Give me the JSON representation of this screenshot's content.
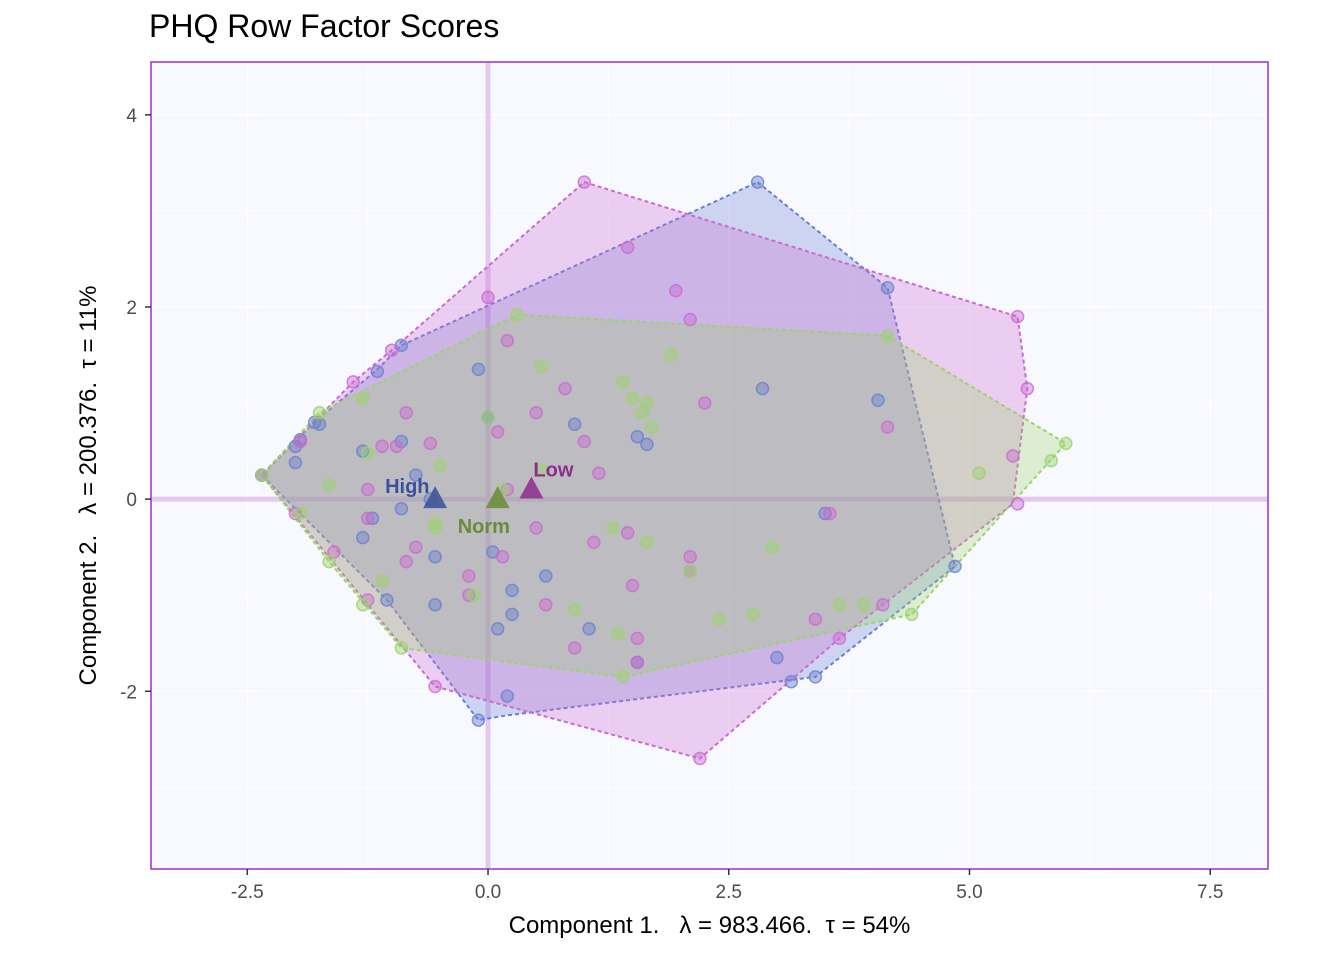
{
  "chart_data": {
    "type": "scatter",
    "title": "PHQ Row Factor Scores",
    "xlabel": "Component 1.   λ = 983.466.  τ = 54%",
    "ylabel": "Component 2.   λ = 200.376.  τ = 11%",
    "xlim": [
      -3.5,
      8.1
    ],
    "ylim": [
      -3.85,
      4.55
    ],
    "xticks": [
      -2.5,
      0.0,
      2.5,
      5.0,
      7.5
    ],
    "xtick_labels": [
      "-2.5",
      "0.0",
      "2.5",
      "5.0",
      "7.5"
    ],
    "yticks": [
      -2,
      0,
      2,
      4
    ],
    "ytick_labels": [
      "-2",
      "0",
      "2",
      "4"
    ],
    "background": "#f8f8ff",
    "panel_border": "#9b30c8",
    "origin_lines_color": "#e3c9f0",
    "grid": true,
    "series": [
      {
        "name": "High",
        "color": "#6b80cf",
        "label_color": "#3b4f9e",
        "mean": [
          -0.55,
          0.0
        ],
        "hull": [
          [
            2.8,
            3.3
          ],
          [
            4.15,
            2.2
          ],
          [
            4.85,
            -0.7
          ],
          [
            3.4,
            -1.85
          ],
          [
            0.2,
            -2.25
          ],
          [
            -0.1,
            -2.3
          ],
          [
            -1.05,
            -1.05
          ],
          [
            -2.35,
            0.25
          ],
          [
            -1.8,
            0.8
          ],
          [
            -1.15,
            1.35
          ],
          [
            -0.9,
            1.6
          ]
        ],
        "points": [
          [
            -2.35,
            0.25
          ],
          [
            -2.0,
            0.55
          ],
          [
            -1.95,
            0.62
          ],
          [
            -1.8,
            0.8
          ],
          [
            -1.75,
            0.78
          ],
          [
            -1.15,
            1.33
          ],
          [
            -0.9,
            1.6
          ],
          [
            -1.3,
            0.5
          ],
          [
            -0.9,
            0.6
          ],
          [
            -0.75,
            0.25
          ],
          [
            -1.2,
            -0.2
          ],
          [
            -1.3,
            -0.4
          ],
          [
            -0.9,
            -0.1
          ],
          [
            -0.55,
            -0.6
          ],
          [
            -0.55,
            -1.1
          ],
          [
            -1.05,
            -1.05
          ],
          [
            -0.1,
            1.35
          ],
          [
            0.0,
            0.85
          ],
          [
            0.05,
            -0.55
          ],
          [
            0.1,
            -1.35
          ],
          [
            0.25,
            -0.95
          ],
          [
            0.25,
            -1.2
          ],
          [
            0.6,
            -0.8
          ],
          [
            0.9,
            0.78
          ],
          [
            1.05,
            -1.35
          ],
          [
            1.55,
            0.65
          ],
          [
            1.65,
            0.57
          ],
          [
            1.55,
            -1.7
          ],
          [
            0.2,
            -2.05
          ],
          [
            -0.1,
            -2.3
          ],
          [
            2.8,
            3.3
          ],
          [
            2.85,
            1.15
          ],
          [
            4.15,
            2.2
          ],
          [
            4.05,
            1.03
          ],
          [
            3.5,
            -0.15
          ],
          [
            3.0,
            -1.65
          ],
          [
            3.15,
            -1.9
          ],
          [
            3.4,
            -1.85
          ],
          [
            4.85,
            -0.7
          ],
          [
            -2.0,
            0.38
          ],
          [
            -0.6,
            0.0
          ]
        ]
      },
      {
        "name": "Low",
        "color": "#c96bd0",
        "label_color": "#8e2c8e",
        "mean": [
          0.45,
          0.1
        ],
        "hull": [
          [
            1.0,
            3.3
          ],
          [
            5.5,
            1.9
          ],
          [
            5.6,
            1.15
          ],
          [
            5.45,
            -0.05
          ],
          [
            3.65,
            -1.45
          ],
          [
            2.2,
            -2.7
          ],
          [
            -0.55,
            -1.95
          ],
          [
            -2.35,
            0.25
          ],
          [
            -1.4,
            1.22
          ],
          [
            -1.0,
            1.55
          ]
        ],
        "points": [
          [
            -2.35,
            0.25
          ],
          [
            -1.95,
            0.6
          ],
          [
            -1.4,
            1.22
          ],
          [
            -1.0,
            1.55
          ],
          [
            -0.85,
            0.9
          ],
          [
            -0.95,
            0.55
          ],
          [
            -1.1,
            0.55
          ],
          [
            -0.6,
            0.58
          ],
          [
            -1.25,
            0.1
          ],
          [
            -2.0,
            -0.15
          ],
          [
            -1.25,
            -0.2
          ],
          [
            -1.6,
            -0.55
          ],
          [
            -0.75,
            -0.5
          ],
          [
            -1.25,
            -1.05
          ],
          [
            -0.85,
            -0.65
          ],
          [
            -0.2,
            -0.8
          ],
          [
            -0.2,
            -1.0
          ],
          [
            0.0,
            2.1
          ],
          [
            0.2,
            1.65
          ],
          [
            0.1,
            0.7
          ],
          [
            0.5,
            0.9
          ],
          [
            1.0,
            0.6
          ],
          [
            0.8,
            1.15
          ],
          [
            1.15,
            0.27
          ],
          [
            1.0,
            3.3
          ],
          [
            1.45,
            2.62
          ],
          [
            1.95,
            2.17
          ],
          [
            2.1,
            1.87
          ],
          [
            2.25,
            1.0
          ],
          [
            1.45,
            -0.35
          ],
          [
            1.1,
            -0.45
          ],
          [
            0.5,
            -0.3
          ],
          [
            0.15,
            -0.6
          ],
          [
            0.6,
            -1.1
          ],
          [
            0.9,
            -1.55
          ],
          [
            1.5,
            -0.9
          ],
          [
            1.55,
            -1.45
          ],
          [
            1.55,
            -1.7
          ],
          [
            2.1,
            -0.6
          ],
          [
            2.1,
            -0.75
          ],
          [
            2.2,
            -2.7
          ],
          [
            -0.55,
            -1.95
          ],
          [
            3.4,
            -1.25
          ],
          [
            3.65,
            -1.45
          ],
          [
            4.1,
            -1.1
          ],
          [
            3.55,
            -0.15
          ],
          [
            4.15,
            0.75
          ],
          [
            5.5,
            1.9
          ],
          [
            5.6,
            1.15
          ],
          [
            5.45,
            0.45
          ],
          [
            5.5,
            -0.05
          ],
          [
            0.2,
            0.1
          ]
        ]
      },
      {
        "name": "Norm",
        "color": "#9cd36b",
        "label_color": "#6b8a3a",
        "mean": [
          0.1,
          0.0
        ],
        "hull": [
          [
            0.3,
            1.92
          ],
          [
            4.15,
            1.7
          ],
          [
            6.0,
            0.58
          ],
          [
            4.4,
            -1.2
          ],
          [
            1.4,
            -1.85
          ],
          [
            -0.9,
            -1.55
          ],
          [
            -1.65,
            -0.65
          ],
          [
            -2.35,
            0.25
          ],
          [
            -1.75,
            0.9
          ]
        ],
        "points": [
          [
            -2.35,
            0.25
          ],
          [
            -1.75,
            0.9
          ],
          [
            -1.65,
            0.15
          ],
          [
            -1.3,
            1.05
          ],
          [
            -1.25,
            0.48
          ],
          [
            -1.95,
            -0.15
          ],
          [
            -1.65,
            -0.65
          ],
          [
            -1.3,
            -1.1
          ],
          [
            -1.1,
            -0.85
          ],
          [
            -0.9,
            -1.55
          ],
          [
            -0.5,
            0.35
          ],
          [
            -0.55,
            0.0
          ],
          [
            -0.55,
            -0.3
          ],
          [
            -0.55,
            -0.25
          ],
          [
            -0.15,
            -1.0
          ],
          [
            0.3,
            1.92
          ],
          [
            0.55,
            1.38
          ],
          [
            0.55,
            0.3
          ],
          [
            0.0,
            0.85
          ],
          [
            0.15,
            0.1
          ],
          [
            1.4,
            1.22
          ],
          [
            1.5,
            1.05
          ],
          [
            1.6,
            0.9
          ],
          [
            1.65,
            1.0
          ],
          [
            1.7,
            0.75
          ],
          [
            1.9,
            1.5
          ],
          [
            1.3,
            -0.3
          ],
          [
            1.65,
            -0.45
          ],
          [
            0.9,
            -1.15
          ],
          [
            1.35,
            -1.4
          ],
          [
            1.4,
            -1.85
          ],
          [
            2.1,
            -0.75
          ],
          [
            2.4,
            -1.25
          ],
          [
            2.75,
            -1.2
          ],
          [
            2.95,
            -0.5
          ],
          [
            3.65,
            -1.1
          ],
          [
            3.9,
            -1.1
          ],
          [
            4.15,
            1.7
          ],
          [
            4.4,
            -1.2
          ],
          [
            5.1,
            0.27
          ],
          [
            5.85,
            0.4
          ],
          [
            6.0,
            0.58
          ],
          [
            0.1,
            -0.03
          ]
        ]
      }
    ]
  }
}
